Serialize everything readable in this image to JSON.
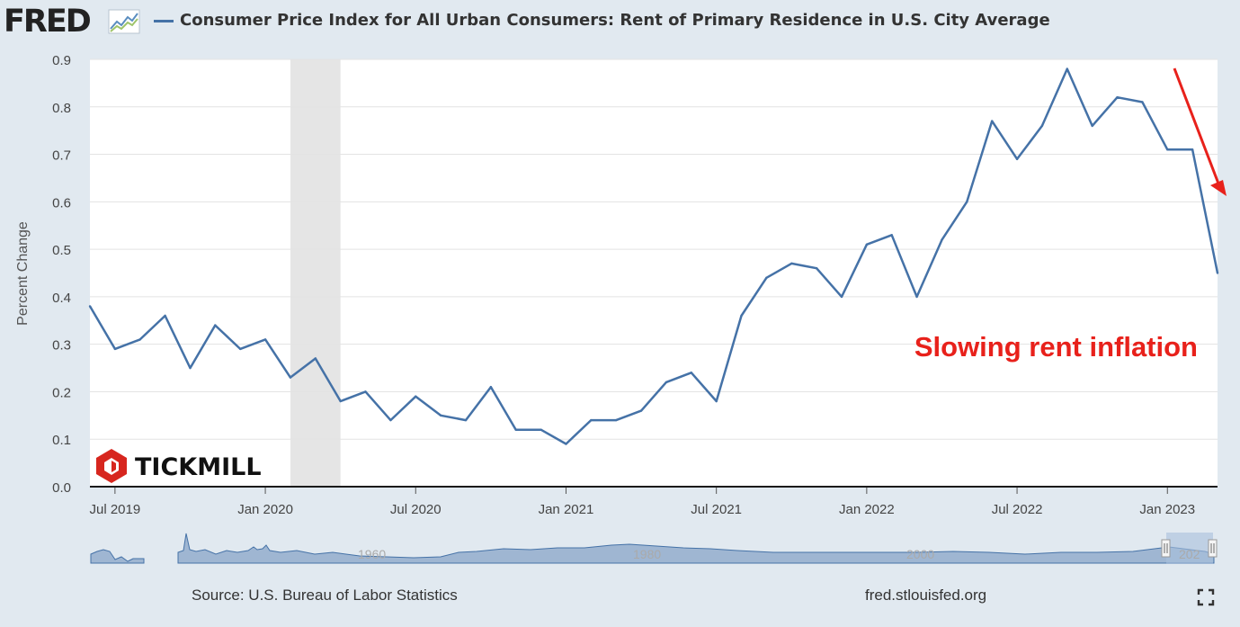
{
  "header": {
    "logo_text": "FRED",
    "title": "Consumer Price Index for All Urban Consumers: Rent of Primary Residence in U.S. City Average"
  },
  "footer": {
    "source": "Source: U.S. Bureau of Labor Statistics",
    "url": "fred.stlouisfed.org"
  },
  "watermark": {
    "text": "TICKMILL"
  },
  "colors": {
    "series": "#4572a7",
    "annotation": "#e8211b",
    "recession": "#e5e5e5",
    "background": "#e1e9f0",
    "plot": "#ffffff"
  },
  "navigator": {
    "labels": [
      "1960",
      "1980",
      "2000",
      "202"
    ]
  },
  "chart_data": {
    "type": "line",
    "title": "Consumer Price Index for All Urban Consumers: Rent of Primary Residence in U.S. City Average",
    "xlabel": "",
    "ylabel": "Percent Change",
    "ylim": [
      0,
      0.9
    ],
    "yticks": [
      "0.0",
      "0.1",
      "0.2",
      "0.3",
      "0.4",
      "0.5",
      "0.6",
      "0.7",
      "0.8",
      "0.9"
    ],
    "xticks": [
      "Jul 2019",
      "Jan 2020",
      "Jul 2020",
      "Jan 2021",
      "Jul 2021",
      "Jan 2022",
      "Jul 2022",
      "Jan 2023"
    ],
    "x_range": [
      "2019-06",
      "2023-03"
    ],
    "recession": {
      "start": "2020-02",
      "end": "2020-04"
    },
    "annotation": "Slowing rent inflation",
    "grid": true,
    "series": [
      {
        "x": [
          "2019-06",
          "2019-07",
          "2019-08",
          "2019-09",
          "2019-10",
          "2019-11",
          "2019-12",
          "2020-01",
          "2020-02",
          "2020-03",
          "2020-04",
          "2020-05",
          "2020-06",
          "2020-07",
          "2020-08",
          "2020-09",
          "2020-10",
          "2020-11",
          "2020-12",
          "2021-01",
          "2021-02",
          "2021-03",
          "2021-04",
          "2021-05",
          "2021-06",
          "2021-07",
          "2021-08",
          "2021-09",
          "2021-10",
          "2021-11",
          "2021-12",
          "2022-01",
          "2022-02",
          "2022-03",
          "2022-04",
          "2022-05",
          "2022-06",
          "2022-07",
          "2022-08",
          "2022-09",
          "2022-10",
          "2022-11",
          "2022-12",
          "2023-01",
          "2023-02",
          "2023-03"
        ],
        "values": [
          0.38,
          0.29,
          0.31,
          0.36,
          0.25,
          0.34,
          0.29,
          0.31,
          0.23,
          0.27,
          0.18,
          0.2,
          0.14,
          0.19,
          0.15,
          0.14,
          0.21,
          0.12,
          0.12,
          0.09,
          0.14,
          0.14,
          0.16,
          0.22,
          0.24,
          0.18,
          0.36,
          0.44,
          0.47,
          0.46,
          0.4,
          0.51,
          0.53,
          0.4,
          0.52,
          0.6,
          0.77,
          0.69,
          0.76,
          0.88,
          0.76,
          0.82,
          0.81,
          0.71,
          0.71,
          0.45
        ]
      }
    ]
  }
}
